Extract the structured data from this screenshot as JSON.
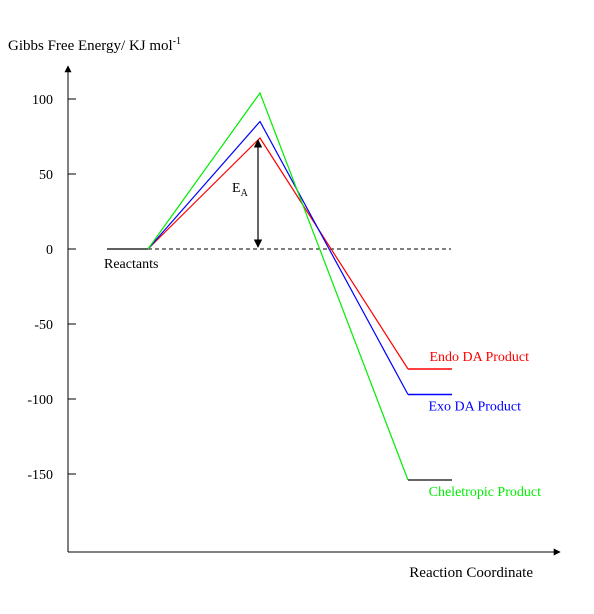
{
  "chart_data": {
    "type": "line",
    "title": "",
    "ylabel": "Gibbs Free Energy/ KJ mol",
    "ylabel_superscript": "-1",
    "xlabel": "Reaction Coordinate",
    "ylim": [
      -200,
      110
    ],
    "yticks": [
      100,
      50,
      0,
      -50,
      -100,
      -150
    ],
    "ytick_labels": [
      "100",
      "50",
      "0",
      "-50",
      "-100",
      "-150"
    ],
    "reactant_label": "Reactants",
    "reactant_energy": 0,
    "activation_label": "E",
    "activation_subscript": "A",
    "activation_arrow": [
      0,
      74
    ],
    "series": [
      {
        "name": "Endo DA Product",
        "color": "#ff0000",
        "ts_energy": 74,
        "product_energy": -80
      },
      {
        "name": "Exo DA Product",
        "color": "#0000ff",
        "ts_energy": 85,
        "product_energy": -97
      },
      {
        "name": "Cheletropic Product",
        "color": "#00ee00",
        "ts_energy": 104,
        "product_energy": -154
      }
    ]
  }
}
